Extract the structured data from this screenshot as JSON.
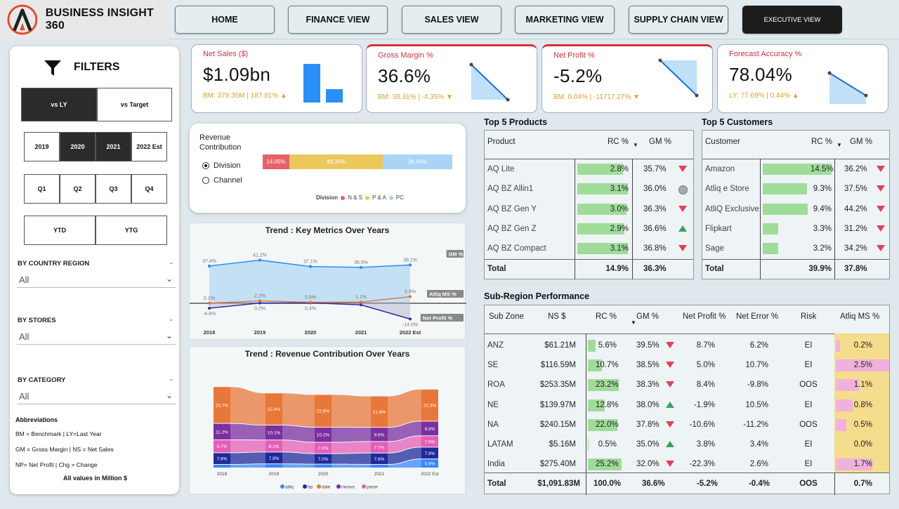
{
  "header": {
    "title": "BUSINESS INSIGHT 360",
    "nav": [
      "HOME",
      "FINANCE VIEW",
      "SALES VIEW",
      "MARKETING VIEW",
      "SUPPLY CHAIN VIEW",
      "EXECUTIVE VIEW"
    ],
    "active_nav": "EXECUTIVE VIEW"
  },
  "filters": {
    "title": "FILTERS",
    "compare": [
      "vs LY",
      "vs Target"
    ],
    "compare_selected": "vs LY",
    "years": [
      "2019",
      "2020",
      "2021",
      "2022 Est"
    ],
    "years_selected": [
      "2020",
      "2021"
    ],
    "quarters": [
      "Q1",
      "Q2",
      "Q3",
      "Q4"
    ],
    "periods": [
      "YTD",
      "YTG"
    ],
    "country_label": "BY COUNTRY REGION",
    "country_value": "All",
    "stores_label": "BY STORES",
    "stores_value": "All",
    "category_label": "BY CATEGORY",
    "category_value": "All",
    "abbr_title": "Abbreviations",
    "abbr_lines": [
      "BM = Benchmark | LY=Last Year",
      "GM = Gross Margin | NS = Net Sales",
      "NP= Net Profit | Chg = Change"
    ],
    "abbr_footer": "All values in Million $"
  },
  "kpis": [
    {
      "title": "Net Sales ($)",
      "value": "$1.09bn",
      "sub": "BM: 379.35M | 187.81% ▲",
      "bm_value": 379.35,
      "current_value": 1091.83
    },
    {
      "title": "Gross Margin %",
      "value": "36.6%",
      "sub": "BM: 38.31% | -4.35% ▼"
    },
    {
      "title": "Net Profit %",
      "value": "-5.2%",
      "sub": "BM: 0.04% | -11717.27% ▼"
    },
    {
      "title": "Forecast Accuracy %",
      "value": "78.04%",
      "sub": "LY: 77.69% | 0.44% ▲"
    }
  ],
  "revenue_contribution": {
    "title_line1": "Revenue",
    "title_line2": "Contribution",
    "options": [
      "Division",
      "Channel"
    ],
    "selected": "Division",
    "legend_title": "Division",
    "segments": [
      {
        "name": "N & S",
        "value": 14.05,
        "label": "14.05%",
        "color": "#e8606a"
      },
      {
        "name": "P & A",
        "value": 49.3,
        "label": "49.30%",
        "color": "#ecc85c"
      },
      {
        "name": "PC",
        "value": 36.66,
        "label": "36.66%",
        "color": "#a9d4f5"
      }
    ]
  },
  "chart_data": [
    {
      "type": "line",
      "title": "Trend : Key Metrics Over Years",
      "categories": [
        "2018",
        "2019",
        "2020",
        "2021",
        "2022 Est"
      ],
      "series": [
        {
          "name": "GM %",
          "values": [
            37.4,
            41.2,
            37.1,
            36.5,
            38.1
          ],
          "labels": [
            "37.4%",
            "41.2%",
            "37.1%",
            "36.5%",
            "38.1%"
          ]
        },
        {
          "name": "Atliq MS %",
          "values": [
            0.1,
            2.2,
            0.9,
            1.1,
            5.9
          ],
          "labels": [
            "0.1%",
            "2.2%",
            "0.9%",
            "1.1%",
            "5.9%"
          ]
        },
        {
          "name": "Net Profit %",
          "values": [
            -4.4,
            0.2,
            0.4,
            -1.4,
            -14.0
          ],
          "labels": [
            "-4.4%",
            "0.2%",
            "0.4%",
            "",
            "-14.0%"
          ]
        }
      ]
    },
    {
      "type": "bar",
      "stacked": true,
      "title": "Trend : Revenue Contribution Over Years",
      "categories": [
        "2018",
        "2019",
        "2020",
        "2021",
        "2022 Est"
      ],
      "series": [
        {
          "name": "atliq",
          "color": "#3a86ff",
          "values": [
            2.0,
            2.4,
            2.2,
            2.0,
            5.9
          ],
          "labels": [
            "",
            "",
            "",
            "",
            "5.9%"
          ]
        },
        {
          "name": "bp",
          "color": "#1f2a9a",
          "values": [
            7.8,
            7.9,
            7.0,
            7.6,
            7.9
          ],
          "labels": [
            "7.8%",
            "7.9%",
            "7.0%",
            "7.6%",
            "7.9%"
          ]
        },
        {
          "name": "pacer",
          "color": "#e35fb8",
          "values": [
            8.7,
            8.1,
            7.6,
            7.7,
            7.6
          ],
          "labels": [
            "8.7%",
            "8.1%",
            "7.6%",
            "7.7%",
            "7.6%"
          ]
        },
        {
          "name": "innovo",
          "color": "#7b2fa0",
          "values": [
            11.2,
            10.1,
            10.2,
            9.6,
            9.9
          ],
          "labels": [
            "11.2%",
            "10.1%",
            "10.2%",
            "9.6%",
            "9.9%"
          ]
        },
        {
          "name": "dale",
          "color": "#e8773a",
          "values": [
            25.7,
            22.4,
            22.8,
            21.8,
            22.3
          ],
          "labels": [
            "25.7%",
            "22.4%",
            "22.8%",
            "21.8%",
            "22.3%"
          ]
        }
      ],
      "legend": [
        "atliq",
        "bp",
        "dale",
        "innovo",
        "pacer"
      ]
    }
  ],
  "top_products": {
    "title": "Top 5 Products",
    "headers": [
      "Product",
      "RC %",
      "GM %"
    ],
    "rows": [
      {
        "name": "AQ Lite",
        "rc": "2.8%",
        "rc_val": 2.8,
        "gm": "35.7%",
        "ind": "down"
      },
      {
        "name": "AQ BZ Allin1",
        "rc": "3.1%",
        "rc_val": 3.1,
        "gm": "36.0%",
        "ind": "neutral"
      },
      {
        "name": "AQ BZ Gen Y",
        "rc": "3.0%",
        "rc_val": 3.0,
        "gm": "36.3%",
        "ind": "down"
      },
      {
        "name": "AQ BZ Gen Z",
        "rc": "2.9%",
        "rc_val": 2.9,
        "gm": "36.6%",
        "ind": "up"
      },
      {
        "name": "AQ BZ Compact",
        "rc": "3.1%",
        "rc_val": 3.1,
        "gm": "36.8%",
        "ind": "down"
      }
    ],
    "total": {
      "label": "Total",
      "rc": "14.9%",
      "gm": "36.3%"
    }
  },
  "top_customers": {
    "title": "Top 5 Customers",
    "headers": [
      "Customer",
      "RC %",
      "GM %"
    ],
    "rows": [
      {
        "name": "Amazon",
        "rc": "14.5%",
        "rc_val": 14.5,
        "gm": "36.2%",
        "ind": "down"
      },
      {
        "name": "Atliq e Store",
        "rc": "9.3%",
        "rc_val": 9.3,
        "gm": "37.5%",
        "ind": "down"
      },
      {
        "name": "AtliQ Exclusive",
        "rc": "9.4%",
        "rc_val": 9.4,
        "gm": "44.2%",
        "ind": "down"
      },
      {
        "name": "Flipkart",
        "rc": "3.3%",
        "rc_val": 3.3,
        "gm": "31.2%",
        "ind": "down"
      },
      {
        "name": "Sage",
        "rc": "3.2%",
        "rc_val": 3.2,
        "gm": "34.2%",
        "ind": "down"
      }
    ],
    "total": {
      "label": "Total",
      "rc": "39.9%",
      "gm": "37.8%"
    }
  },
  "subregion": {
    "title": "Sub-Region Performance",
    "headers": [
      "Sub Zone",
      "NS $",
      "RC %",
      "GM %",
      "Net Profit %",
      "Net Error %",
      "Risk",
      "Atliq MS %"
    ],
    "rows": [
      {
        "zone": "ANZ",
        "ns": "$61.21M",
        "rc": "5.6%",
        "rc_val": 5.6,
        "gm": "39.5%",
        "ind": "down",
        "np": "8.7%",
        "ne": "6.2%",
        "risk": "EI",
        "ms": "0.2%",
        "ms_val": 0.2
      },
      {
        "zone": "SE",
        "ns": "$116.59M",
        "rc": "10.7%",
        "rc_val": 10.7,
        "gm": "38.5%",
        "ind": "down",
        "np": "5.0%",
        "ne": "10.7%",
        "risk": "EI",
        "ms": "2.5%",
        "ms_val": 2.5
      },
      {
        "zone": "ROA",
        "ns": "$253.35M",
        "rc": "23.2%",
        "rc_val": 23.2,
        "gm": "38.3%",
        "ind": "down",
        "np": "8.4%",
        "ne": "-9.8%",
        "risk": "OOS",
        "ms": "1.1%",
        "ms_val": 1.1
      },
      {
        "zone": "NE",
        "ns": "$139.97M",
        "rc": "12.8%",
        "rc_val": 12.8,
        "gm": "38.0%",
        "ind": "up",
        "np": "-1.9%",
        "ne": "10.5%",
        "risk": "EI",
        "ms": "0.8%",
        "ms_val": 0.8
      },
      {
        "zone": "NA",
        "ns": "$240.15M",
        "rc": "22.0%",
        "rc_val": 22.0,
        "gm": "37.8%",
        "ind": "down",
        "np": "-10.6%",
        "ne": "-11.2%",
        "risk": "OOS",
        "ms": "0.5%",
        "ms_val": 0.5
      },
      {
        "zone": "LATAM",
        "ns": "$5.16M",
        "rc": "0.5%",
        "rc_val": 0.5,
        "gm": "35.0%",
        "ind": "up",
        "np": "3.8%",
        "ne": "3.4%",
        "risk": "EI",
        "ms": "0.0%",
        "ms_val": 0.0
      },
      {
        "zone": "India",
        "ns": "$275.40M",
        "rc": "25.2%",
        "rc_val": 25.2,
        "gm": "32.0%",
        "ind": "down",
        "np": "-22.3%",
        "ne": "2.6%",
        "risk": "EI",
        "ms": "1.7%",
        "ms_val": 1.7
      }
    ],
    "total": {
      "zone": "Total",
      "ns": "$1,091.83M",
      "rc": "100.0%",
      "gm": "36.6%",
      "np": "-5.2%",
      "ne": "-0.4%",
      "risk": "OOS",
      "ms": "0.7%"
    }
  }
}
